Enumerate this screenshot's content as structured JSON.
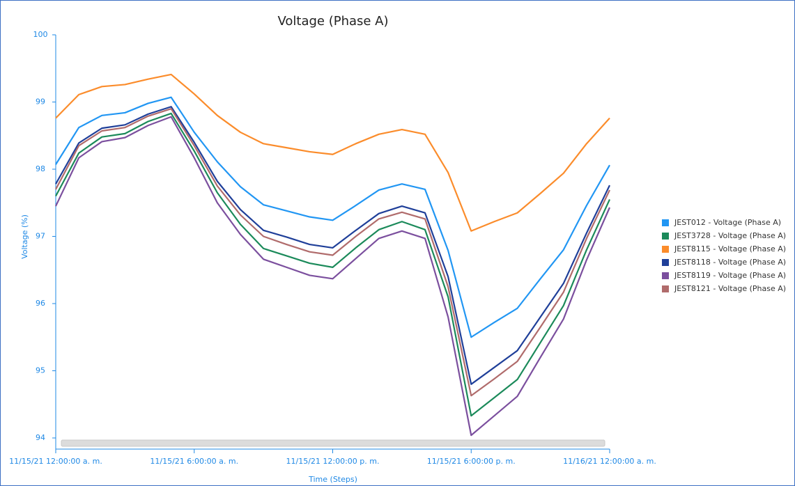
{
  "chart_data": {
    "type": "line",
    "title": "Voltage (Phase A)",
    "y_label": "Voltage (%)",
    "x_label": "Time (Steps)",
    "categories": [
      "11/15/21 12:00:00 a. m.",
      null,
      null,
      null,
      null,
      null,
      "11/15/21 6:00:00 a. m.",
      null,
      null,
      null,
      null,
      null,
      "11/15/21 12:00:00 p. m.",
      null,
      null,
      null,
      null,
      null,
      "11/15/21 6:00:00 p. m.",
      null,
      null,
      null,
      null,
      null,
      "11/16/21 12:00:00 a. m."
    ],
    "ylim": [
      94,
      100
    ],
    "yticks": [
      94,
      95,
      96,
      97,
      98,
      99,
      100
    ],
    "legend": "right",
    "series": [
      {
        "name": "JEST012 - Voltage (Phase A)",
        "color": "#2196f3",
        "values": [
          98.07,
          98.62,
          98.8,
          98.84,
          98.98,
          99.07,
          98.55,
          98.11,
          97.74,
          97.47,
          97.38,
          97.29,
          97.24,
          97.46,
          97.69,
          97.78,
          97.7,
          96.79,
          95.5,
          95.72,
          95.93,
          96.37,
          96.8,
          97.46,
          98.06
        ]
      },
      {
        "name": "JEST3728 - Voltage (Phase A)",
        "color": "#1b8a5a",
        "values": [
          97.6,
          98.24,
          98.48,
          98.53,
          98.71,
          98.83,
          98.27,
          97.65,
          97.18,
          96.82,
          96.71,
          96.6,
          96.54,
          96.83,
          97.1,
          97.22,
          97.1,
          96.1,
          94.33,
          94.6,
          94.87,
          95.42,
          95.97,
          96.8,
          97.55
        ]
      },
      {
        "name": "JEST8115 - Voltage (Phase A)",
        "color": "#fb8c2b",
        "values": [
          98.76,
          99.11,
          99.23,
          99.26,
          99.34,
          99.41,
          99.12,
          98.8,
          98.55,
          98.38,
          98.32,
          98.26,
          98.22,
          98.38,
          98.52,
          98.59,
          98.52,
          97.95,
          97.08,
          97.22,
          97.35,
          97.64,
          97.94,
          98.38,
          98.76
        ]
      },
      {
        "name": "JEST8118 - Voltage (Phase A)",
        "color": "#1f3f99",
        "values": [
          97.78,
          98.39,
          98.61,
          98.66,
          98.82,
          98.93,
          98.4,
          97.82,
          97.4,
          97.09,
          96.99,
          96.88,
          96.83,
          97.09,
          97.34,
          97.45,
          97.35,
          96.4,
          94.8,
          95.05,
          95.3,
          95.8,
          96.3,
          97.05,
          97.76
        ]
      },
      {
        "name": "JEST8119 - Voltage (Phase A)",
        "color": "#7b4f9e",
        "values": [
          97.45,
          98.17,
          98.41,
          98.47,
          98.65,
          98.78,
          98.17,
          97.5,
          97.03,
          96.66,
          96.54,
          96.42,
          96.37,
          96.67,
          96.97,
          97.08,
          96.97,
          95.8,
          94.04,
          94.33,
          94.62,
          95.2,
          95.77,
          96.65,
          97.43
        ]
      },
      {
        "name": "JEST8121 - Voltage (Phase A)",
        "color": "#b06b6b",
        "values": [
          97.7,
          98.35,
          98.57,
          98.62,
          98.79,
          98.9,
          98.35,
          97.75,
          97.32,
          97.0,
          96.88,
          96.77,
          96.72,
          97.0,
          97.26,
          97.36,
          97.26,
          96.25,
          94.63,
          94.88,
          95.14,
          95.65,
          96.17,
          96.97,
          97.69
        ]
      }
    ]
  }
}
